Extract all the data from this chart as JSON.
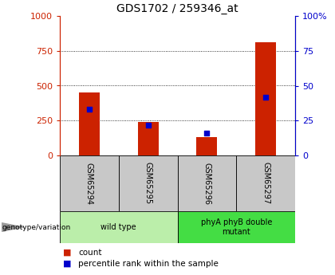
{
  "title": "GDS1702 / 259346_at",
  "samples": [
    "GSM65294",
    "GSM65295",
    "GSM65296",
    "GSM65297"
  ],
  "count_values": [
    450,
    240,
    130,
    810
  ],
  "percentile_values": [
    33,
    22,
    16,
    42
  ],
  "bar_color": "#cc2200",
  "percentile_color": "#0000cc",
  "left_ylim": [
    0,
    1000
  ],
  "right_ylim": [
    0,
    100
  ],
  "left_yticks": [
    0,
    250,
    500,
    750,
    1000
  ],
  "right_yticks": [
    0,
    25,
    50,
    75,
    100
  ],
  "right_yticklabels": [
    "0",
    "25",
    "50",
    "75",
    "100%"
  ],
  "grid_values": [
    250,
    500,
    750
  ],
  "groups": [
    {
      "label": "wild type",
      "indices": [
        0,
        1
      ],
      "color": "#bbeeaa"
    },
    {
      "label": "phyA phyB double\nmutant",
      "indices": [
        2,
        3
      ],
      "color": "#44dd44"
    }
  ],
  "group_label": "genotype/variation",
  "legend_count_label": "count",
  "legend_percentile_label": "percentile rank within the sample",
  "bg_plot": "#ffffff",
  "bg_label_row": "#c8c8c8",
  "title_fontsize": 10,
  "tick_fontsize": 8,
  "bar_width": 0.35
}
